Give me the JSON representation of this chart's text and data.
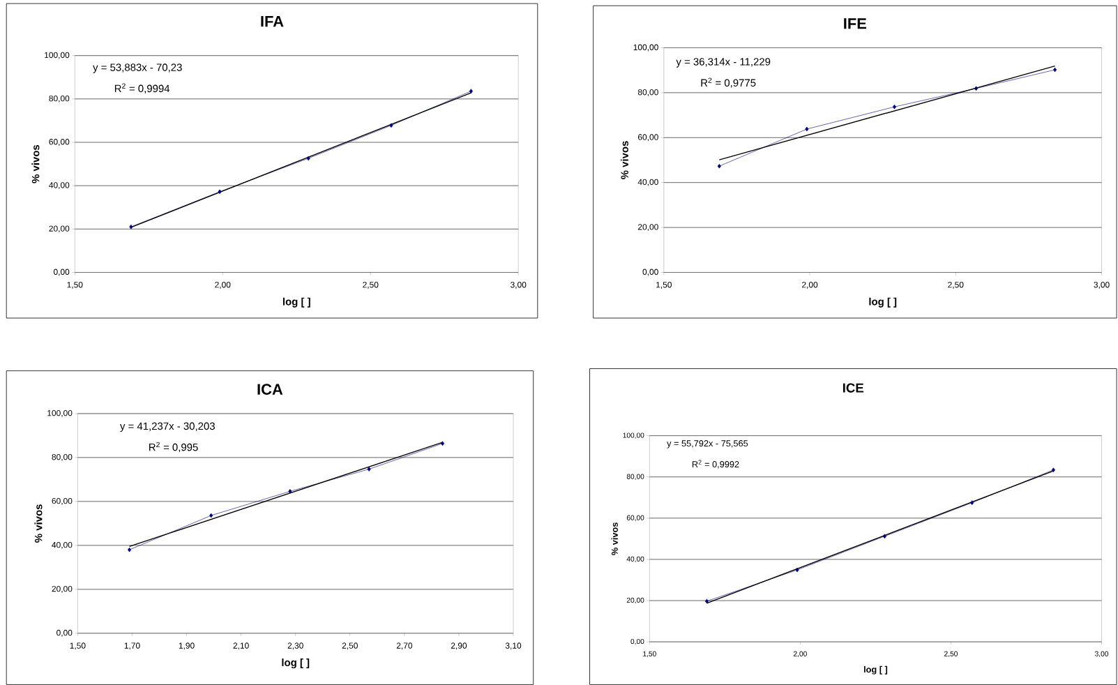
{
  "chart_data": [
    {
      "type": "line",
      "title": "IFA",
      "xlabel": "log [ ]",
      "ylabel": "% vivos",
      "grid": "y",
      "marker": "diamond",
      "annotations": [
        "y = 53,883x - 70,23",
        "R$^{2}$ = 0,9994"
      ],
      "xlim": [
        1.5,
        3.0
      ],
      "ylim": [
        0,
        100
      ],
      "xticks": [
        {
          "value": 1.5,
          "label": "1,50"
        },
        {
          "value": 2.0,
          "label": "2,00"
        },
        {
          "value": 2.5,
          "label": "2,50"
        },
        {
          "value": 3.0,
          "label": "3,00"
        }
      ],
      "yticks": [
        {
          "value": 0,
          "label": "0,00"
        },
        {
          "value": 20,
          "label": "20,00"
        },
        {
          "value": 40,
          "label": "40,00"
        },
        {
          "value": 60,
          "label": "60,00"
        },
        {
          "value": 80,
          "label": "80,00"
        },
        {
          "value": 100,
          "label": "100,00"
        }
      ],
      "series": [
        {
          "color": "#000080",
          "x": [
            1.69,
            1.99,
            2.29,
            2.57,
            2.84
          ],
          "values": [
            21.0,
            37.2,
            52.6,
            67.8,
            83.6
          ]
        },
        {
          "type": "line",
          "color": "#000000",
          "marker": "none",
          "x": [
            1.69,
            2.84
          ],
          "values": [
            20.8,
            82.8
          ]
        }
      ]
    },
    {
      "type": "line",
      "title": "IFE",
      "xlabel": "log [ ]",
      "ylabel": "% vivos",
      "grid": "y",
      "marker": "diamond",
      "annotations": [
        "y = 36,314x - 11,229",
        "R$^{2}$ = 0,9775"
      ],
      "xlim": [
        1.5,
        3.0
      ],
      "ylim": [
        0,
        100
      ],
      "xticks": [
        {
          "value": 1.5,
          "label": "1,50"
        },
        {
          "value": 2.0,
          "label": "2,00"
        },
        {
          "value": 2.5,
          "label": "2,50"
        },
        {
          "value": 3.0,
          "label": "3,00"
        }
      ],
      "yticks": [
        {
          "value": 0,
          "label": "0,00"
        },
        {
          "value": 20,
          "label": "20,00"
        },
        {
          "value": 40,
          "label": "40,00"
        },
        {
          "value": 60,
          "label": "60,00"
        },
        {
          "value": 80,
          "label": "80,00"
        },
        {
          "value": 100,
          "label": "100,00"
        }
      ],
      "series": [
        {
          "color": "#000080",
          "x": [
            1.69,
            1.99,
            2.29,
            2.57,
            2.84
          ],
          "values": [
            47.3,
            63.8,
            73.7,
            81.9,
            90.2
          ]
        },
        {
          "type": "line",
          "color": "#000000",
          "marker": "none",
          "x": [
            1.69,
            2.84
          ],
          "values": [
            50.1,
            91.9
          ]
        }
      ]
    },
    {
      "type": "line",
      "title": "ICA",
      "xlabel": "log [ ]",
      "ylabel": "% vivos",
      "grid": "y",
      "marker": "diamond",
      "annotations": [
        "y = 41,237x - 30,203",
        "R$^{2}$ = 0,995"
      ],
      "xlim": [
        1.5,
        3.1
      ],
      "ylim": [
        0,
        100
      ],
      "xticks": [
        {
          "value": 1.5,
          "label": "1,50"
        },
        {
          "value": 1.7,
          "label": "1,70"
        },
        {
          "value": 1.9,
          "label": "1,90"
        },
        {
          "value": 2.1,
          "label": "2,10"
        },
        {
          "value": 2.3,
          "label": "2,30"
        },
        {
          "value": 2.5,
          "label": "2,50"
        },
        {
          "value": 2.7,
          "label": "2,70"
        },
        {
          "value": 2.9,
          "label": "2,90"
        },
        {
          "value": 3.1,
          "label": "3,10"
        }
      ],
      "yticks": [
        {
          "value": 0,
          "label": "0,00"
        },
        {
          "value": 20,
          "label": "20,00"
        },
        {
          "value": 40,
          "label": "40,00"
        },
        {
          "value": 60,
          "label": "60,00"
        },
        {
          "value": 80,
          "label": "80,00"
        },
        {
          "value": 100,
          "label": "100,00"
        }
      ],
      "series": [
        {
          "color": "#000080",
          "x": [
            1.69,
            1.99,
            2.28,
            2.57,
            2.84
          ],
          "values": [
            38.0,
            53.6,
            64.6,
            74.7,
            86.4
          ]
        },
        {
          "type": "line",
          "color": "#000000",
          "marker": "none",
          "x": [
            1.69,
            2.84
          ],
          "values": [
            39.5,
            86.9
          ]
        }
      ]
    },
    {
      "type": "line",
      "title": "ICE",
      "xlabel": "log [ ]",
      "ylabel": "% vivos",
      "grid": "y",
      "marker": "diamond",
      "annotations": [
        "y = 55,792x - 75,565",
        "R$^{2}$ = 0,9992"
      ],
      "xlim": [
        1.5,
        3.0
      ],
      "ylim": [
        0,
        100
      ],
      "xticks": [
        {
          "value": 1.5,
          "label": "1,50"
        },
        {
          "value": 2.0,
          "label": "2,00"
        },
        {
          "value": 2.5,
          "label": "2,50"
        },
        {
          "value": 3.0,
          "label": "3,00"
        }
      ],
      "yticks": [
        {
          "value": 0,
          "label": "0,00"
        },
        {
          "value": 20,
          "label": "20,00"
        },
        {
          "value": 40,
          "label": "40,00"
        },
        {
          "value": 60,
          "label": "60,00"
        },
        {
          "value": 80,
          "label": "80,00"
        },
        {
          "value": 100,
          "label": "100,00"
        }
      ],
      "series": [
        {
          "color": "#000080",
          "x": [
            1.69,
            1.99,
            2.28,
            2.57,
            2.84
          ],
          "values": [
            19.7,
            34.9,
            51.2,
            67.5,
            83.4
          ]
        },
        {
          "type": "line",
          "color": "#000000",
          "marker": "none",
          "x": [
            1.69,
            2.84
          ],
          "values": [
            18.7,
            82.9
          ]
        }
      ]
    }
  ]
}
